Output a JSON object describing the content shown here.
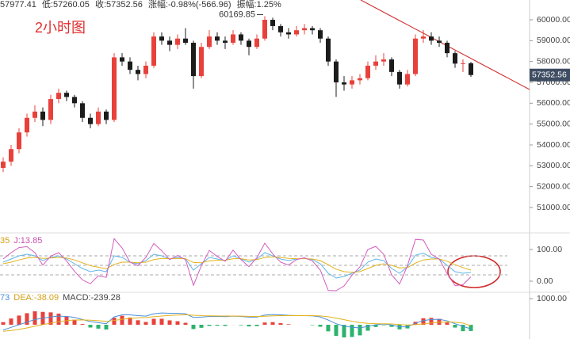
{
  "chart_data": [
    {
      "type": "candlestick",
      "title": "2小时图",
      "header": [
        "57977.41",
        "低:57260.05",
        "收:57352.56",
        "涨幅:-0.98%(-566.96)",
        "振幅:1.25%"
      ],
      "up_color": "#e8413b",
      "down_color": "#1c1c1c",
      "candles": [
        [
          52900,
          53400,
          52700,
          53200
        ],
        [
          53200,
          54000,
          53000,
          53800
        ],
        [
          53800,
          54800,
          53600,
          54600
        ],
        [
          54600,
          55500,
          54400,
          55300
        ],
        [
          55300,
          55900,
          55100,
          55600
        ],
        [
          55600,
          55800,
          54900,
          55200
        ],
        [
          55200,
          56400,
          55000,
          56200
        ],
        [
          56200,
          56700,
          56000,
          56500
        ],
        [
          56500,
          56600,
          56100,
          56300
        ],
        [
          56300,
          56400,
          55800,
          56000
        ],
        [
          56000,
          56100,
          55100,
          55300
        ],
        [
          55300,
          55500,
          54800,
          55000
        ],
        [
          55000,
          55800,
          54900,
          55600
        ],
        [
          55600,
          55700,
          55000,
          55200
        ],
        [
          55200,
          58400,
          55100,
          58200
        ],
        [
          58200,
          58400,
          57800,
          58000
        ],
        [
          58000,
          58200,
          57400,
          57600
        ],
        [
          57600,
          57800,
          57100,
          57400
        ],
        [
          57400,
          58000,
          57200,
          57800
        ],
        [
          57800,
          59400,
          57700,
          59200
        ],
        [
          59200,
          59400,
          58800,
          59000
        ],
        [
          59000,
          59200,
          58500,
          58800
        ],
        [
          58800,
          59300,
          58600,
          59100
        ],
        [
          59100,
          59600,
          58800,
          58900
        ],
        [
          58900,
          59000,
          56700,
          57300
        ],
        [
          57300,
          58900,
          57200,
          58700
        ],
        [
          58700,
          59500,
          58600,
          59200
        ],
        [
          59200,
          59400,
          58800,
          59000
        ],
        [
          59000,
          59200,
          58600,
          58900
        ],
        [
          58900,
          59500,
          58800,
          59300
        ],
        [
          59300,
          59400,
          58800,
          59000
        ],
        [
          59000,
          59100,
          58300,
          58700
        ],
        [
          58700,
          59300,
          58600,
          59100
        ],
        [
          59100,
          60169.85,
          59000,
          60000
        ],
        [
          60000,
          60100,
          59500,
          59700
        ],
        [
          59700,
          59800,
          59200,
          59400
        ],
        [
          59400,
          59600,
          59100,
          59300
        ],
        [
          59300,
          59700,
          59200,
          59500
        ],
        [
          59500,
          59800,
          59300,
          59600
        ],
        [
          59600,
          59700,
          59300,
          59500
        ],
        [
          59500,
          59600,
          58900,
          59100
        ],
        [
          59100,
          59200,
          57800,
          58000
        ],
        [
          58000,
          58100,
          56300,
          57000
        ],
        [
          57000,
          57300,
          56600,
          56900
        ],
        [
          56900,
          57300,
          56700,
          57100
        ],
        [
          57100,
          57400,
          56900,
          57200
        ],
        [
          57200,
          58000,
          57100,
          57800
        ],
        [
          57800,
          58300,
          57600,
          58000
        ],
        [
          58000,
          58400,
          57800,
          58100
        ],
        [
          58100,
          58200,
          57300,
          57500
        ],
        [
          57500,
          57600,
          56700,
          56900
        ],
        [
          56900,
          57600,
          56800,
          57400
        ],
        [
          57400,
          59300,
          57300,
          59100
        ],
        [
          59100,
          59500,
          58900,
          59200
        ],
        [
          59200,
          59400,
          58800,
          59000
        ],
        [
          59000,
          59200,
          58700,
          58900
        ],
        [
          58900,
          59000,
          58200,
          58400
        ],
        [
          58400,
          58500,
          57700,
          57900
        ],
        [
          57900,
          58100,
          57500,
          57919.52
        ],
        [
          57919.52,
          57977.41,
          57260.05,
          57352.56
        ]
      ],
      "ylim": [
        49860,
        60950
      ],
      "yticks": [
        {
          "value": 51000,
          "label": "51000.00"
        },
        {
          "value": 52000,
          "label": "52000.00"
        },
        {
          "value": 53000,
          "label": "53000.00"
        },
        {
          "value": 54000,
          "label": "54000.00"
        },
        {
          "value": 55000,
          "label": "55000.00"
        },
        {
          "value": 56000,
          "label": "56000.00"
        },
        {
          "value": 57000,
          "label": "57000.00"
        },
        {
          "value": 58000,
          "label": "58000.00"
        },
        {
          "value": 59000,
          "label": "59000.00"
        },
        {
          "value": 60000,
          "label": "60000.00"
        }
      ]
    },
    {
      "type": "line",
      "legend": [
        {
          "text": "35",
          "color": "#d4a017"
        },
        {
          "text": "J:13.85",
          "color": "#c94fb0"
        }
      ],
      "series": [
        {
          "color": "#5fb7e8",
          "values": [
            60,
            70,
            80,
            85,
            80,
            65,
            75,
            80,
            70,
            55,
            40,
            30,
            35,
            30,
            80,
            75,
            60,
            55,
            65,
            85,
            80,
            70,
            75,
            70,
            35,
            55,
            75,
            70,
            65,
            80,
            70,
            60,
            70,
            90,
            80,
            70,
            65,
            70,
            72,
            68,
            55,
            25,
            10,
            15,
            25,
            35,
            60,
            70,
            65,
            40,
            25,
            45,
            82,
            88,
            75,
            70,
            50,
            30,
            25,
            27.95
          ]
        },
        {
          "color": "#e3b21c",
          "values": [
            55,
            60,
            67,
            73,
            75,
            72,
            73,
            75,
            73,
            67,
            58,
            49,
            44,
            39,
            53,
            60,
            60,
            58,
            60,
            68,
            72,
            71,
            72,
            71,
            59,
            58,
            64,
            66,
            66,
            71,
            71,
            67,
            68,
            75,
            77,
            75,
            72,
            71,
            71,
            70,
            65,
            52,
            38,
            30,
            28,
            30,
            40,
            50,
            55,
            50,
            42,
            43,
            57,
            67,
            70,
            70,
            63,
            52,
            43,
            35
          ]
        },
        {
          "color": "#d45cc0",
          "values": [
            70,
            90,
            106,
            109,
            90,
            51,
            79,
            90,
            64,
            31,
            4,
            -8,
            17,
            12,
            134,
            105,
            60,
            49,
            75,
            119,
            96,
            68,
            81,
            68,
            -13,
            49,
            97,
            78,
            63,
            98,
            68,
            46,
            74,
            120,
            86,
            60,
            51,
            68,
            74,
            64,
            35,
            -29,
            -30,
            -15,
            19,
            45,
            100,
            110,
            85,
            20,
            -9,
            49,
            132,
            130,
            85,
            70,
            24,
            -14,
            -11,
            13.85
          ]
        }
      ],
      "levels": [
        80,
        50,
        20
      ],
      "ylim": [
        -32.5,
        142.5
      ],
      "yticks": [
        {
          "value": 100,
          "label": "100.00"
        },
        {
          "value": 0,
          "label": "0.00"
        }
      ]
    },
    {
      "type": "bar",
      "legend": [
        {
          "text": "73",
          "color": "#4a90d9"
        },
        {
          "text": "DEA:-38.09",
          "color": "#d4a017"
        },
        {
          "text": "MACD:-239.28",
          "color": "#444444"
        }
      ],
      "up_color": "#e8413b",
      "down_color": "#2bb36b",
      "values": [
        100,
        240,
        352,
        442,
        514,
        492,
        474,
        426,
        326,
        196,
        28,
        -106,
        -148,
        -182,
        270,
        344,
        276,
        172,
        106,
        228,
        230,
        168,
        134,
        74,
        -164,
        -116,
        -44,
        -36,
        -44,
        -4,
        -20,
        -64,
        -52,
        86,
        100,
        64,
        20,
        0,
        0,
        -16,
        -76,
        -252,
        -426,
        -484,
        -468,
        -406,
        -228,
        -86,
        -20,
        -80,
        -176,
        -140,
        112,
        250,
        264,
        228,
        86,
        -108,
        -246,
        -239.28
      ],
      "series": [
        {
          "color": "#4a90d9",
          "values": [
            -200,
            -100,
            0,
            100,
            200,
            250,
            300,
            330,
            320,
            280,
            200,
            120,
            80,
            40,
            300,
            380,
            380,
            350,
            330,
            420,
            450,
            440,
            440,
            420,
            280,
            290,
            320,
            320,
            310,
            330,
            320,
            290,
            290,
            370,
            390,
            380,
            360,
            350,
            350,
            340,
            300,
            180,
            40,
            -50,
            -100,
            -120,
            -60,
            0,
            30,
            -10,
            -80,
            -80,
            60,
            160,
            200,
            210,
            150,
            40,
            -60,
            -157.73
          ]
        },
        {
          "color": "#e3b21c",
          "values": [
            -250,
            -220,
            -176,
            -121,
            -57,
            4,
            63,
            117,
            157,
            182,
            186,
            173,
            154,
            131,
            165,
            208,
            242,
            264,
            277,
            306,
            335,
            356,
            373,
            383,
            362,
            348,
            342,
            338,
            332,
            332,
            330,
            322,
            316,
            327,
            340,
            348,
            350,
            350,
            350,
            348,
            338,
            306,
            253,
            192,
            134,
            83,
            54,
            43,
            40,
            30,
            8,
            -10,
            4,
            35,
            68,
            96,
            107,
            94,
            63,
            -38.09
          ]
        }
      ],
      "ylim": [
        -545,
        1212
      ],
      "yticks": [
        {
          "value": 1000,
          "label": "1000.00"
        }
      ]
    }
  ]
}
